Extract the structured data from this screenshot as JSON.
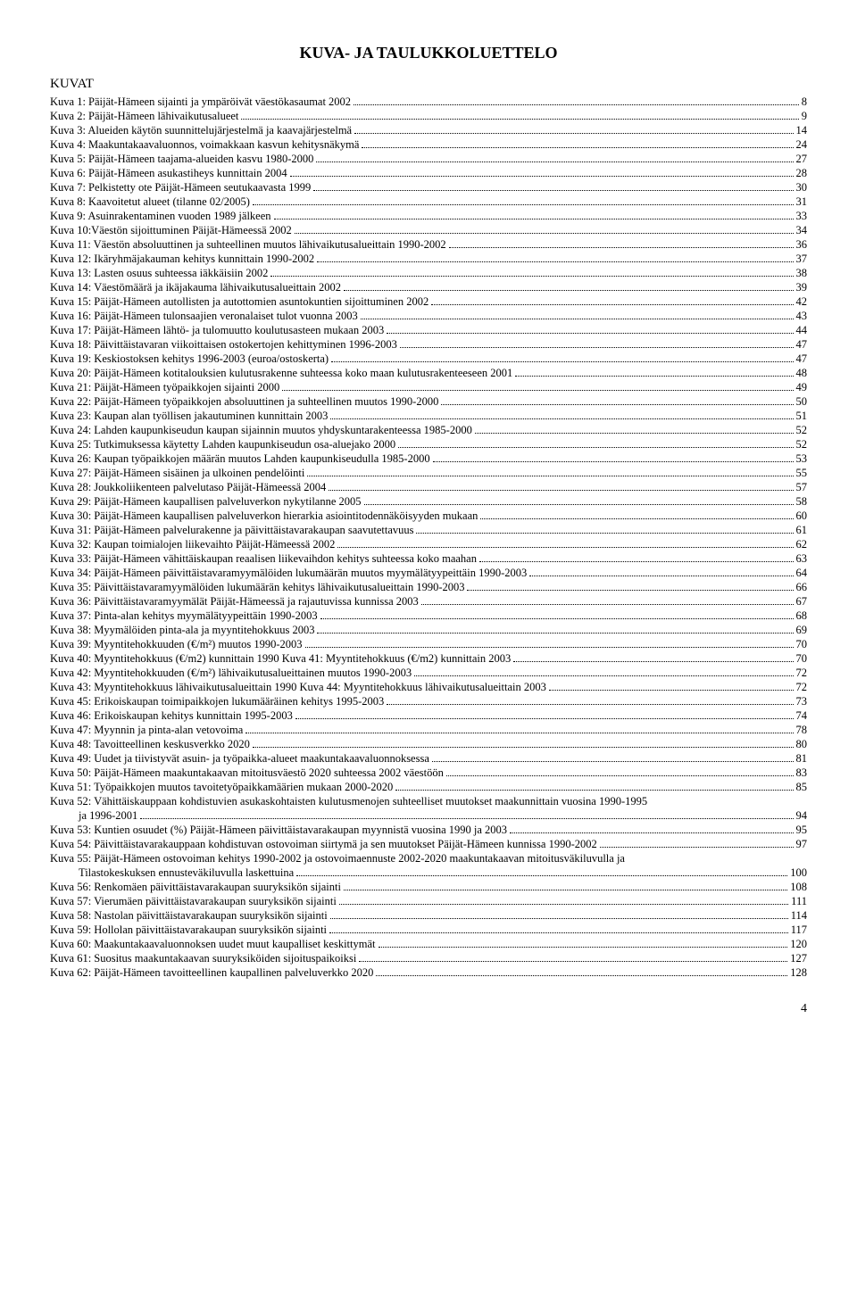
{
  "title": "KUVA- JA TAULUKKOLUETTELO",
  "sectionHeading": "KUVAT",
  "pageNumber": "4",
  "entries": [
    {
      "label": "Kuva 1: Päijät-Hämeen sijainti ja ympäröivät väestökasaumat 2002",
      "page": "8",
      "indent": false
    },
    {
      "label": "Kuva 2: Päijät-Hämeen lähivaikutusalueet",
      "page": "9",
      "indent": false
    },
    {
      "label": "Kuva 3: Alueiden käytön suunnittelujärjestelmä ja kaavajärjestelmä",
      "page": "14",
      "indent": false
    },
    {
      "label": "Kuva 4: Maakuntakaavaluonnos, voimakkaan kasvun kehitysnäkymä",
      "page": "24",
      "indent": false
    },
    {
      "label": "Kuva 5: Päijät-Hämeen taajama-alueiden kasvu 1980-2000",
      "page": "27",
      "indent": false
    },
    {
      "label": "Kuva 6: Päijät-Hämeen asukastiheys kunnittain 2004",
      "page": "28",
      "indent": false
    },
    {
      "label": "Kuva 7: Pelkistetty ote Päijät-Hämeen seutukaavasta 1999",
      "page": "30",
      "indent": false
    },
    {
      "label": "Kuva 8: Kaavoitetut alueet (tilanne 02/2005)",
      "page": "31",
      "indent": false
    },
    {
      "label": "Kuva 9: Asuinrakentaminen vuoden 1989 jälkeen",
      "page": "33",
      "indent": false
    },
    {
      "label": "Kuva 10:Väestön sijoittuminen Päijät-Hämeessä 2002",
      "page": "34",
      "indent": false
    },
    {
      "label": "Kuva 11: Väestön absoluuttinen ja suhteellinen muutos lähivaikutusalueittain 1990-2002",
      "page": "36",
      "indent": false
    },
    {
      "label": "Kuva 12: Ikäryhmäjakauman kehitys kunnittain 1990-2002",
      "page": "37",
      "indent": false
    },
    {
      "label": "Kuva 13: Lasten osuus suhteessa iäkkäisiin 2002",
      "page": "38",
      "indent": false
    },
    {
      "label": "Kuva 14: Väestömäärä ja ikäjakauma lähivaikutusalueittain 2002",
      "page": "39",
      "indent": false
    },
    {
      "label": "Kuva 15: Päijät-Hämeen autollisten ja autottomien asuntokuntien sijoittuminen 2002",
      "page": "42",
      "indent": false
    },
    {
      "label": "Kuva 16: Päijät-Hämeen tulonsaajien veronalaiset tulot vuonna 2003",
      "page": "43",
      "indent": false
    },
    {
      "label": "Kuva 17: Päijät-Hämeen lähtö- ja tulomuutto koulutusasteen mukaan 2003",
      "page": "44",
      "indent": false
    },
    {
      "label": "Kuva 18: Päivittäistavaran viikoittaisen ostokertojen kehittyminen 1996-2003",
      "page": "47",
      "indent": false
    },
    {
      "label": "Kuva 19: Keskiostoksen kehitys 1996-2003 (euroa/ostoskerta)",
      "page": "47",
      "indent": false
    },
    {
      "label": "Kuva 20: Päijät-Hämeen kotitalouksien kulutusrakenne suhteessa koko maan kulutusrakenteeseen 2001",
      "page": "48",
      "indent": false
    },
    {
      "label": "Kuva 21: Päijät-Hämeen työpaikkojen sijainti 2000",
      "page": "49",
      "indent": false
    },
    {
      "label": "Kuva 22: Päijät-Hämeen työpaikkojen absoluuttinen ja suhteellinen muutos 1990-2000",
      "page": "50",
      "indent": false
    },
    {
      "label": "Kuva 23: Kaupan alan työllisen jakautuminen kunnittain 2003",
      "page": "51",
      "indent": false
    },
    {
      "label": "Kuva 24: Lahden kaupunkiseudun kaupan sijainnin muutos yhdyskuntarakenteessa 1985-2000",
      "page": "52",
      "indent": false
    },
    {
      "label": "Kuva 25: Tutkimuksessa käytetty Lahden kaupunkiseudun osa-aluejako 2000",
      "page": "52",
      "indent": false
    },
    {
      "label": "Kuva 26: Kaupan työpaikkojen määrän muutos Lahden kaupunkiseudulla 1985-2000",
      "page": "53",
      "indent": false
    },
    {
      "label": "Kuva 27: Päijät-Hämeen sisäinen ja ulkoinen pendelöinti",
      "page": "55",
      "indent": false
    },
    {
      "label": "Kuva 28: Joukkoliikenteen palvelutaso Päijät-Hämeessä 2004",
      "page": "57",
      "indent": false
    },
    {
      "label": "Kuva 29: Päijät-Hämeen kaupallisen palveluverkon nykytilanne 2005",
      "page": "58",
      "indent": false
    },
    {
      "label": "Kuva 30: Päijät-Hämeen kaupallisen palveluverkon hierarkia asiointitodennäköisyyden mukaan",
      "page": "60",
      "indent": false
    },
    {
      "label": "Kuva 31: Päijät-Hämeen palvelurakenne ja päivittäistavarakaupan saavutettavuus",
      "page": "61",
      "indent": false
    },
    {
      "label": "Kuva 32: Kaupan toimialojen liikevaihto Päijät-Hämeessä 2002",
      "page": "62",
      "indent": false
    },
    {
      "label": "Kuva 33: Päijät-Hämeen vähittäiskaupan reaalisen liikevaihdon kehitys suhteessa koko maahan",
      "page": "63",
      "indent": false
    },
    {
      "label": "Kuva 34: Päijät-Hämeen päivittäistavaramyymälöiden lukumäärän muutos myymälätyypeittäin 1990-2003",
      "page": "64",
      "indent": false
    },
    {
      "label": "Kuva 35: Päivittäistavaramyymälöiden lukumäärän kehitys lähivaikutusalueittain 1990-2003",
      "page": "66",
      "indent": false
    },
    {
      "label": "Kuva 36: Päivittäistavaramyymälät Päijät-Hämeessä ja rajautuvissa kunnissa 2003",
      "page": "67",
      "indent": false
    },
    {
      "label": "Kuva 37: Pinta-alan kehitys myymälätyypeittäin 1990-2003",
      "page": "68",
      "indent": false
    },
    {
      "label": "Kuva 38: Myymälöiden pinta-ala ja myyntitehokkuus 2003",
      "page": "69",
      "indent": false
    },
    {
      "label": "Kuva 39: Myyntitehokkuuden (€/m²) muutos 1990-2003",
      "page": "70",
      "indent": false
    },
    {
      "label": "Kuva 40: Myyntitehokkuus (€/m2) kunnittain 1990      Kuva 41: Myyntitehokkuus (€/m2) kunnittain 2003",
      "page": "70",
      "indent": false
    },
    {
      "label": "Kuva 42: Myyntitehokkuuden (€/m²) lähivaikutusalueittainen muutos 1990-2003",
      "page": "72",
      "indent": false
    },
    {
      "label": "Kuva 43: Myyntitehokkuus lähivaikutusalueittain 1990   Kuva 44: Myyntitehokkuus lähivaikutusalueittain 2003",
      "page": "72",
      "indent": false
    },
    {
      "label": "Kuva 45: Erikoiskaupan toimipaikkojen lukumääräinen kehitys 1995-2003",
      "page": "73",
      "indent": false
    },
    {
      "label": "Kuva 46: Erikoiskaupan kehitys kunnittain 1995-2003",
      "page": "74",
      "indent": false
    },
    {
      "label": "Kuva 47: Myynnin ja pinta-alan vetovoima",
      "page": "78",
      "indent": false
    },
    {
      "label": "Kuva 48: Tavoitteellinen keskusverkko 2020",
      "page": "80",
      "indent": false
    },
    {
      "label": "Kuva 49: Uudet ja tiivistyvät asuin- ja työpaikka-alueet maakuntakaavaluonnoksessa",
      "page": "81",
      "indent": false
    },
    {
      "label": "Kuva 50: Päijät-Hämeen maakuntakaavan mitoitusväestö 2020 suhteessa 2002 väestöön",
      "page": "83",
      "indent": false
    },
    {
      "label": "Kuva 51: Työpaikkojen muutos tavoitetyöpaikkamäärien mukaan 2000-2020",
      "page": "85",
      "indent": false
    },
    {
      "label": "Kuva 52: Vähittäiskauppaan kohdistuvien asukaskohtaisten kulutusmenojen suhteelliset muutokset maakunnittain vuosina 1990-1995",
      "page": "",
      "indent": false
    },
    {
      "label": "ja 1996-2001",
      "page": "94",
      "indent": true
    },
    {
      "label": "Kuva 53: Kuntien osuudet (%) Päijät-Hämeen päivittäistavarakaupan myynnistä vuosina 1990 ja 2003",
      "page": "95",
      "indent": false
    },
    {
      "label": "Kuva 54: Päivittäistavarakauppaan kohdistuvan ostovoiman siirtymä ja sen muutokset Päijät-Hämeen kunnissa 1990-2002",
      "page": "97",
      "indent": false
    },
    {
      "label": "Kuva 55: Päijät-Hämeen ostovoiman kehitys 1990-2002 ja ostovoimaennuste 2002-2020 maakuntakaavan mitoitusväkiluvulla ja",
      "page": "",
      "indent": false
    },
    {
      "label": "Tilastokeskuksen ennusteväkiluvulla laskettuina",
      "page": "100",
      "indent": true
    },
    {
      "label": "Kuva 56: Renkomäen päivittäistavarakaupan suuryksikön sijainti",
      "page": "108",
      "indent": false
    },
    {
      "label": "Kuva 57: Vierumäen päivittäistavarakaupan suuryksikön sijainti",
      "page": "111",
      "indent": false
    },
    {
      "label": "Kuva 58: Nastolan päivittäistavarakaupan suuryksikön sijainti",
      "page": "114",
      "indent": false
    },
    {
      "label": "Kuva 59: Hollolan päivittäistavarakaupan suuryksikön sijainti",
      "page": "117",
      "indent": false
    },
    {
      "label": "Kuva 60: Maakuntakaavaluonnoksen uudet muut kaupalliset keskittymät",
      "page": "120",
      "indent": false
    },
    {
      "label": "Kuva 61: Suositus maakuntakaavan suuryksiköiden sijoituspaikoiksi",
      "page": "127",
      "indent": false
    },
    {
      "label": "Kuva 62: Päijät-Hämeen tavoitteellinen kaupallinen palveluverkko 2020",
      "page": "128",
      "indent": false
    }
  ]
}
